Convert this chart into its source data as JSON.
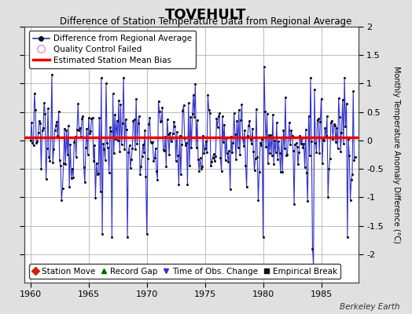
{
  "title": "TOVEHULT",
  "subtitle": "Difference of Station Temperature Data from Regional Average",
  "ylabel": "Monthly Temperature Anomaly Difference (°C)",
  "xlim": [
    1959.5,
    1988.2
  ],
  "ylim": [
    -2.5,
    2.0
  ],
  "yticks": [
    -2.0,
    -1.5,
    -1.0,
    -0.5,
    0.0,
    0.5,
    1.0,
    1.5,
    2.0
  ],
  "ytick_labels": [
    "-2",
    "-1.5",
    "-1",
    "-0.5",
    "0",
    "0.5",
    "1",
    "1.5",
    "2"
  ],
  "xticks": [
    1960,
    1965,
    1970,
    1975,
    1980,
    1985
  ],
  "mean_bias": 0.05,
  "line_color": "#3333cc",
  "dot_color": "#111111",
  "bias_color": "#ee0000",
  "background_color": "#e0e0e0",
  "plot_bg_color": "#ffffff",
  "grid_color": "#bbbbbb",
  "title_fontsize": 13,
  "subtitle_fontsize": 8.5,
  "ylabel_fontsize": 7,
  "tick_fontsize": 8,
  "legend_fontsize": 7.5,
  "watermark": "Berkeley Earth",
  "seed": 12345,
  "n_years": 28,
  "start_year": 1960
}
